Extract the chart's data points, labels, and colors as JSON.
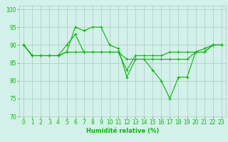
{
  "title": "",
  "xlabel": "Humidité relative (%)",
  "ylabel": "",
  "bg_color": "#d4f0eb",
  "grid_color": "#aaccbb",
  "line_color": "#00bb00",
  "xlim": [
    -0.5,
    23.5
  ],
  "ylim": [
    70,
    101
  ],
  "yticks": [
    70,
    75,
    80,
    85,
    90,
    95,
    100
  ],
  "xticks": [
    0,
    1,
    2,
    3,
    4,
    5,
    6,
    7,
    8,
    9,
    10,
    11,
    12,
    13,
    14,
    15,
    16,
    17,
    18,
    19,
    20,
    21,
    22,
    23
  ],
  "series": [
    {
      "x": [
        0,
        1,
        2,
        3,
        4,
        5,
        6,
        7,
        8,
        9,
        10,
        11,
        12,
        13,
        14,
        15,
        16,
        17,
        18,
        19,
        20,
        21,
        22,
        23
      ],
      "y": [
        90,
        87,
        87,
        87,
        87,
        88,
        95,
        94,
        95,
        95,
        90,
        89,
        81,
        86,
        86,
        83,
        80,
        75,
        81,
        81,
        88,
        89,
        90,
        90
      ]
    },
    {
      "x": [
        0,
        1,
        2,
        3,
        4,
        5,
        6,
        7,
        8,
        9,
        10,
        11,
        12,
        13,
        14,
        15,
        16,
        17,
        18,
        19,
        20,
        21,
        22,
        23
      ],
      "y": [
        90,
        87,
        87,
        87,
        87,
        90,
        93,
        88,
        88,
        88,
        88,
        88,
        83,
        87,
        87,
        87,
        87,
        88,
        88,
        88,
        88,
        88,
        90,
        90
      ]
    },
    {
      "x": [
        0,
        1,
        2,
        3,
        4,
        5,
        6,
        7,
        8,
        9,
        10,
        11,
        12,
        13,
        14,
        15,
        16,
        17,
        18,
        19,
        20,
        21,
        22,
        23
      ],
      "y": [
        90,
        87,
        87,
        87,
        87,
        88,
        88,
        88,
        88,
        88,
        88,
        88,
        86,
        86,
        86,
        86,
        86,
        86,
        86,
        86,
        88,
        88,
        90,
        90
      ]
    }
  ]
}
